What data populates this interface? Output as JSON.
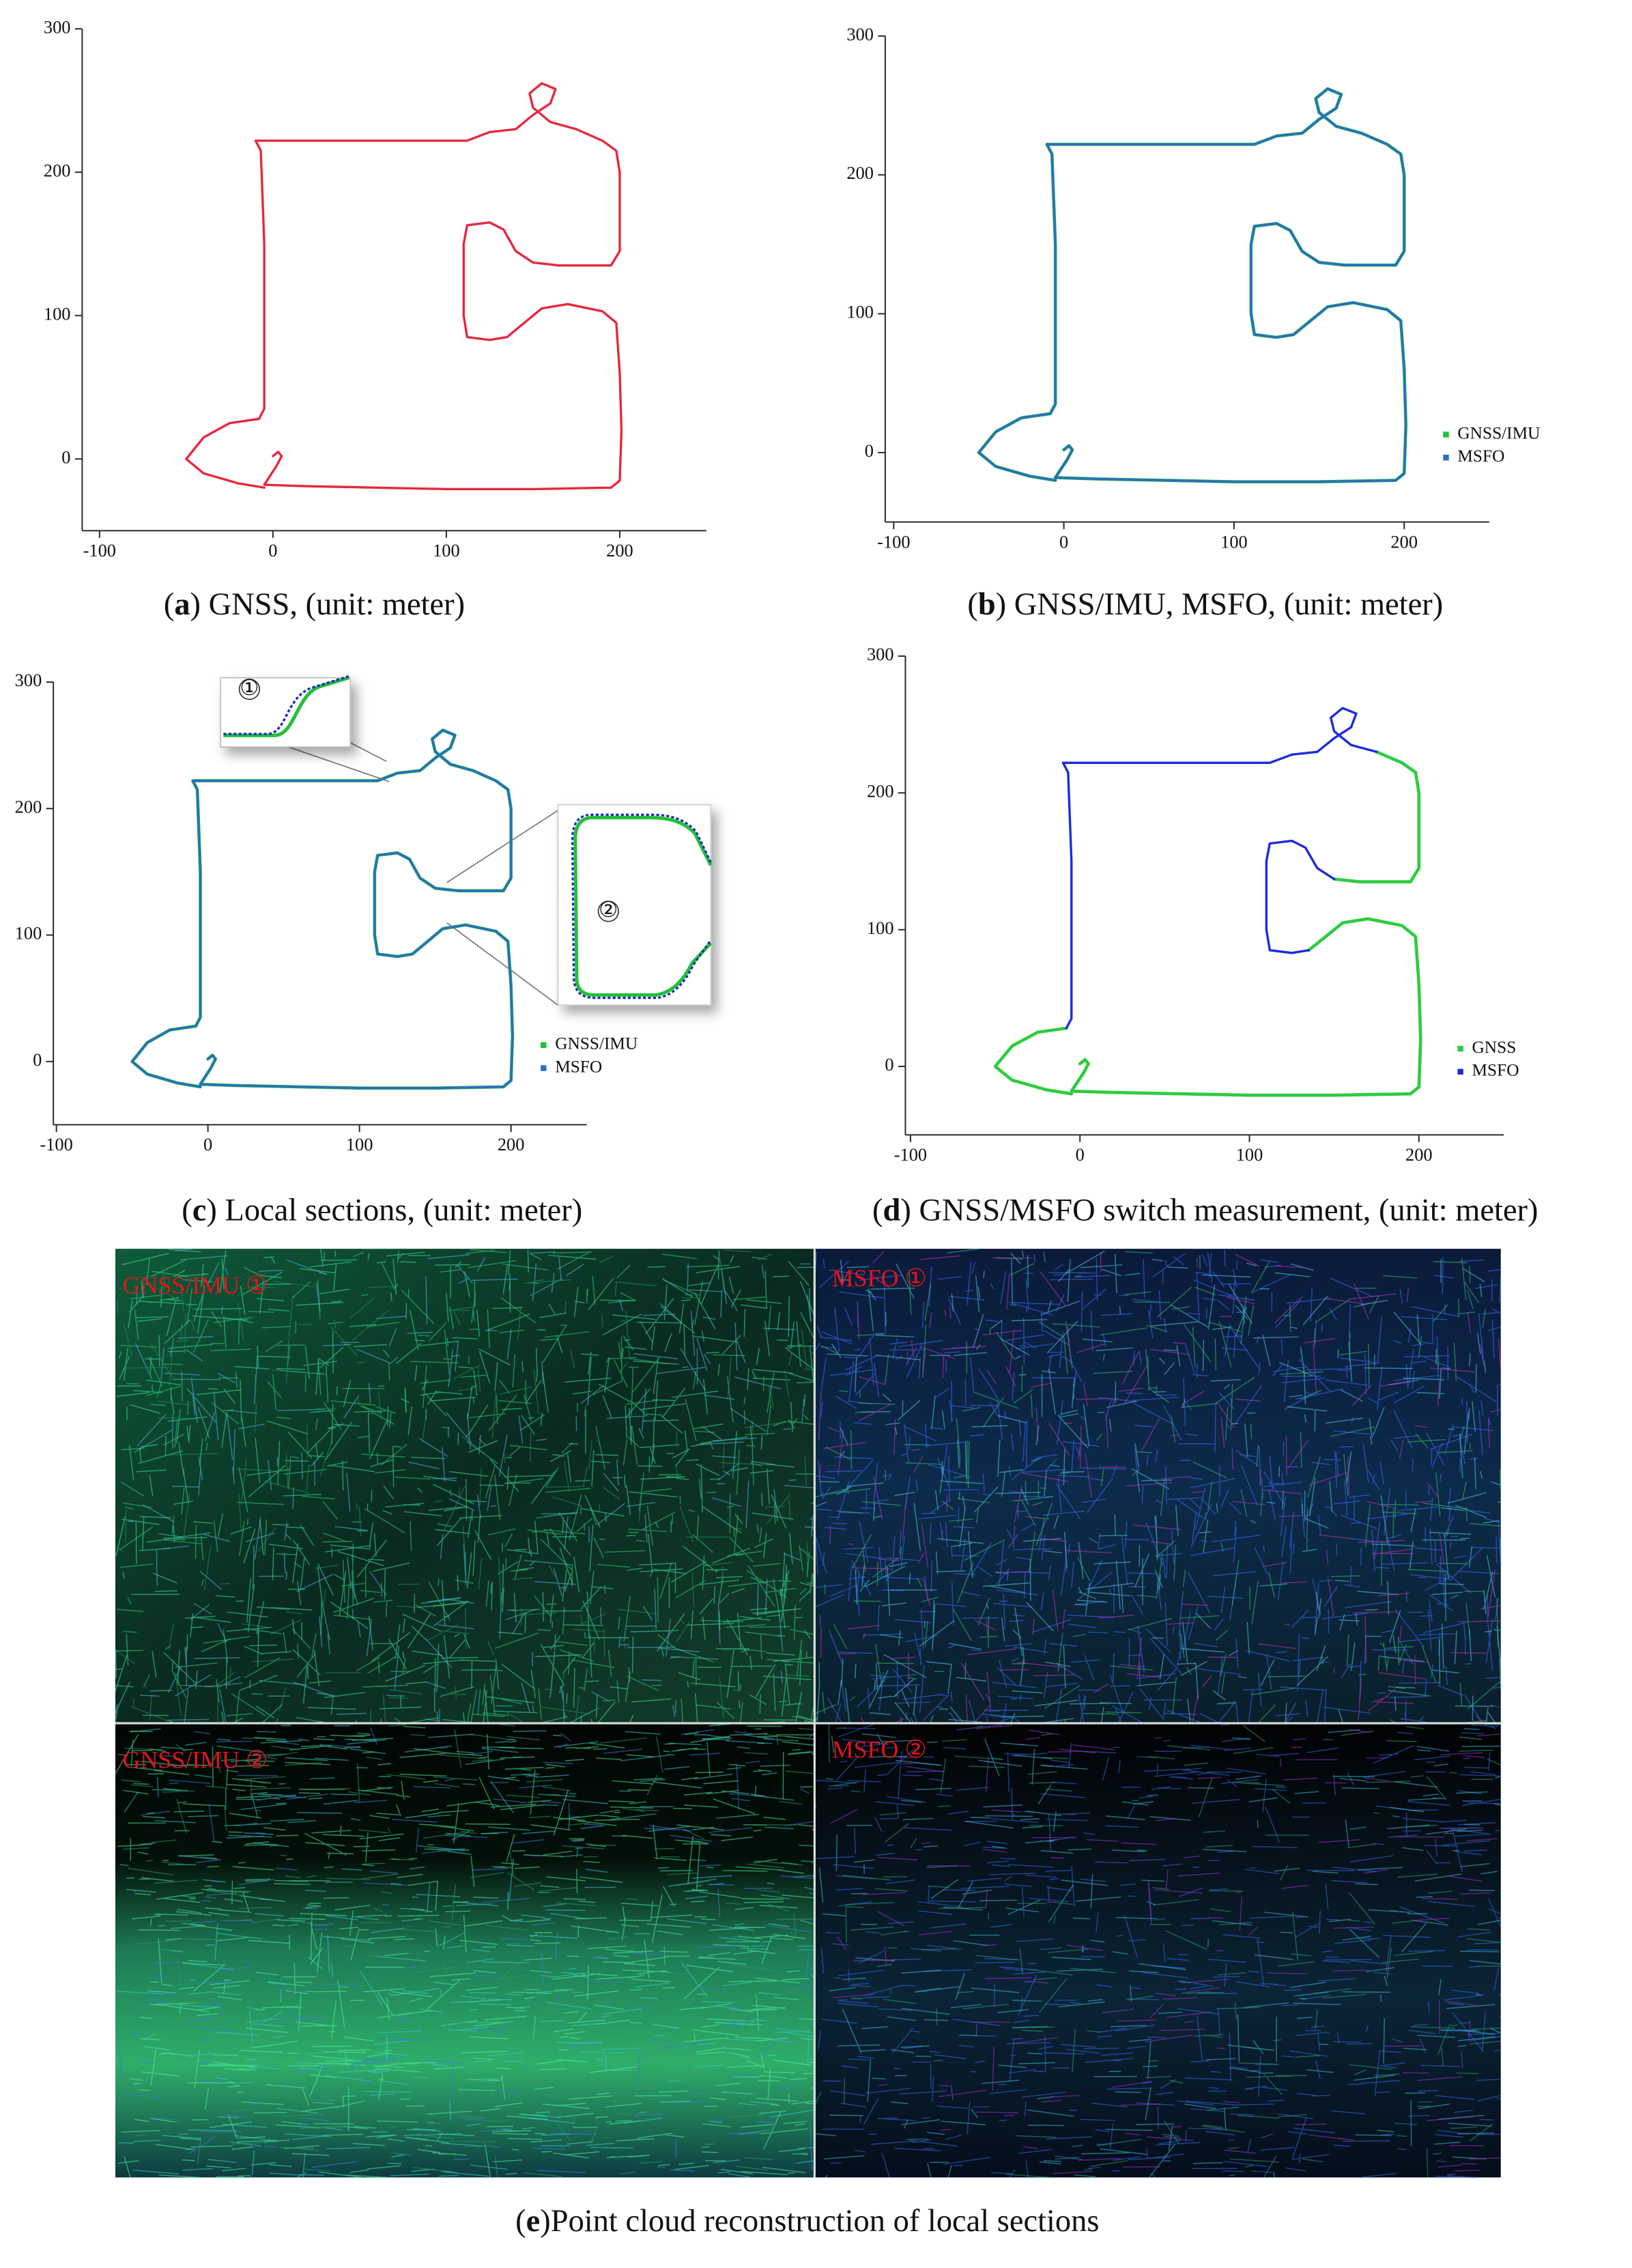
{
  "chart_data": [
    {
      "type": "line",
      "caption": "(a) GNSS, (unit: meter)",
      "color": "#e6283c",
      "x": [
        0,
        3,
        5,
        2,
        -5,
        20,
        60,
        100,
        150,
        195,
        200,
        201,
        200,
        198,
        190,
        170,
        155,
        145,
        135,
        125,
        112,
        110,
        110,
        112,
        125,
        133,
        140,
        150,
        165,
        195,
        200,
        200,
        198,
        190,
        175,
        160,
        150,
        148,
        155,
        163,
        160,
        150,
        140,
        125,
        112,
        80,
        40,
        0,
        -10,
        -7,
        -5,
        -5,
        -5,
        -8,
        -25,
        -40,
        -50,
        -40,
        -20,
        -5
      ],
      "values": [
        2,
        5,
        2,
        -5,
        -18,
        -19,
        -20,
        -21,
        -21,
        -20,
        -15,
        20,
        60,
        95,
        103,
        108,
        105,
        95,
        85,
        83,
        85,
        100,
        150,
        163,
        165,
        160,
        145,
        137,
        135,
        135,
        145,
        200,
        215,
        222,
        230,
        235,
        245,
        255,
        262,
        258,
        248,
        240,
        230,
        228,
        222,
        222,
        222,
        222,
        222,
        215,
        150,
        80,
        35,
        28,
        25,
        15,
        0,
        -10,
        -17,
        -20
      ],
      "xlim": [
        -110,
        250
      ],
      "ylim": [
        -50,
        300
      ],
      "xticks": [
        -100,
        0,
        100,
        200
      ],
      "yticks": [
        0,
        100,
        200,
        300
      ]
    },
    {
      "type": "line",
      "caption": "(b) GNSS/IMU, MSFO, (unit: meter)",
      "legend": "lower right",
      "x": [
        0,
        3,
        5,
        2,
        -5,
        20,
        60,
        100,
        150,
        195,
        200,
        201,
        200,
        198,
        190,
        170,
        155,
        145,
        135,
        125,
        112,
        110,
        110,
        112,
        125,
        133,
        140,
        150,
        165,
        195,
        200,
        200,
        198,
        190,
        175,
        160,
        150,
        148,
        155,
        163,
        160,
        150,
        140,
        125,
        112,
        80,
        40,
        0,
        -10,
        -7,
        -5,
        -5,
        -5,
        -8,
        -25,
        -40,
        -50,
        -40,
        -20,
        -5
      ],
      "series": [
        {
          "name": "GNSS/IMU",
          "color": "#22c03a",
          "values": [
            2,
            5,
            2,
            -5,
            -18,
            -19,
            -20,
            -21,
            -21,
            -20,
            -15,
            20,
            60,
            95,
            103,
            108,
            105,
            95,
            85,
            83,
            85,
            100,
            150,
            163,
            165,
            160,
            145,
            137,
            135,
            135,
            145,
            200,
            215,
            222,
            230,
            235,
            245,
            255,
            262,
            258,
            248,
            240,
            230,
            228,
            222,
            222,
            222,
            222,
            222,
            215,
            150,
            80,
            35,
            28,
            25,
            15,
            0,
            -10,
            -17,
            -20
          ]
        },
        {
          "name": "MSFO",
          "color": "#2a6fbf",
          "values": [
            2,
            5,
            2,
            -5,
            -18,
            -19,
            -20,
            -21,
            -21,
            -20,
            -15,
            20,
            60,
            95,
            103,
            108,
            105,
            95,
            85,
            83,
            85,
            100,
            150,
            163,
            165,
            160,
            145,
            137,
            135,
            135,
            145,
            200,
            215,
            222,
            230,
            235,
            245,
            255,
            262,
            258,
            248,
            240,
            230,
            228,
            222,
            222,
            222,
            222,
            222,
            215,
            150,
            80,
            35,
            28,
            25,
            15,
            0,
            -10,
            -17,
            -20
          ]
        }
      ],
      "xlim": [
        -105,
        250
      ],
      "ylim": [
        -50,
        300
      ],
      "xticks": [
        -100,
        0,
        100,
        200
      ],
      "yticks": [
        0,
        100,
        200,
        300
      ]
    },
    {
      "type": "line",
      "caption": "(c) Local sections, (unit: meter)",
      "legend": "lower right",
      "annotations": [
        "①",
        "②"
      ],
      "x": [
        0,
        3,
        5,
        2,
        -5,
        20,
        60,
        100,
        150,
        195,
        200,
        201,
        200,
        198,
        190,
        170,
        155,
        145,
        135,
        125,
        112,
        110,
        110,
        112,
        125,
        133,
        140,
        150,
        165,
        195,
        200,
        200,
        198,
        190,
        175,
        160,
        150,
        148,
        155,
        163,
        160,
        150,
        140,
        125,
        112,
        80,
        40,
        0,
        -10,
        -7,
        -5,
        -5,
        -5,
        -8,
        -25,
        -40,
        -50,
        -40,
        -20,
        -5
      ],
      "series": [
        {
          "name": "GNSS/IMU",
          "color": "#22c03a",
          "values": [
            2,
            5,
            2,
            -5,
            -18,
            -19,
            -20,
            -21,
            -21,
            -20,
            -15,
            20,
            60,
            95,
            103,
            108,
            105,
            95,
            85,
            83,
            85,
            100,
            150,
            163,
            165,
            160,
            145,
            137,
            135,
            135,
            145,
            200,
            215,
            222,
            230,
            235,
            245,
            255,
            262,
            258,
            248,
            240,
            230,
            228,
            222,
            222,
            222,
            222,
            222,
            215,
            150,
            80,
            35,
            28,
            25,
            15,
            0,
            -10,
            -17,
            -20
          ]
        },
        {
          "name": "MSFO",
          "color": "#2a6fbf",
          "values": [
            2,
            5,
            2,
            -5,
            -18,
            -19,
            -20,
            -21,
            -21,
            -20,
            -15,
            20,
            60,
            95,
            103,
            108,
            105,
            95,
            85,
            83,
            85,
            100,
            150,
            163,
            165,
            160,
            145,
            137,
            135,
            135,
            145,
            200,
            215,
            222,
            230,
            235,
            245,
            255,
            262,
            258,
            248,
            240,
            230,
            228,
            222,
            222,
            222,
            222,
            222,
            215,
            150,
            80,
            35,
            28,
            25,
            15,
            0,
            -10,
            -17,
            -20
          ]
        }
      ],
      "xlim": [
        -102,
        250
      ],
      "ylim": [
        -50,
        300
      ],
      "xticks": [
        -100,
        0,
        100,
        200
      ],
      "yticks": [
        0,
        100,
        200,
        300
      ]
    },
    {
      "type": "line",
      "caption": "(d) GNSS/MSFO switch measurement, (unit: meter)",
      "legend": "lower right",
      "x": [
        0,
        3,
        5,
        2,
        -5,
        20,
        60,
        100,
        150,
        195,
        200,
        201,
        200,
        198,
        190,
        170,
        155,
        145,
        135,
        125,
        112,
        110,
        110,
        112,
        125,
        133,
        140,
        150,
        165,
        195,
        200,
        200,
        198,
        190,
        175,
        160,
        150,
        148,
        155,
        163,
        160,
        150,
        140,
        125,
        112,
        80,
        40,
        0,
        -10,
        -7,
        -5,
        -5,
        -5,
        -8,
        -25,
        -40,
        -50,
        -40,
        -20,
        -5
      ],
      "series": [
        {
          "name": "GNSS",
          "color": "#2ecc40",
          "values": [
            2,
            5,
            2,
            -5,
            -18,
            -19,
            -20,
            -21,
            -21,
            -20,
            -15,
            20,
            60,
            95,
            103,
            108,
            105,
            95,
            85,
            null,
            null,
            null,
            null,
            null,
            null,
            null,
            null,
            137,
            135,
            135,
            145,
            200,
            215,
            222,
            230,
            null,
            null,
            null,
            null,
            null,
            null,
            null,
            null,
            null,
            null,
            null,
            null,
            null,
            null,
            null,
            null,
            null,
            null,
            28,
            25,
            15,
            0,
            -10,
            -17,
            -20
          ]
        },
        {
          "name": "MSFO",
          "color": "#1a2be0",
          "values": [
            null,
            null,
            null,
            null,
            null,
            null,
            null,
            null,
            null,
            null,
            null,
            null,
            null,
            null,
            null,
            null,
            null,
            null,
            85,
            83,
            85,
            100,
            150,
            163,
            165,
            160,
            145,
            137,
            null,
            null,
            null,
            null,
            null,
            null,
            230,
            235,
            245,
            255,
            262,
            258,
            248,
            240,
            230,
            228,
            222,
            222,
            222,
            222,
            222,
            215,
            150,
            80,
            35,
            28,
            null,
            null,
            null,
            null,
            null,
            null
          ]
        }
      ],
      "xlim": [
        -103,
        250
      ],
      "ylim": [
        -50,
        300
      ],
      "xticks": [
        -100,
        0,
        100,
        200
      ],
      "yticks": [
        0,
        100,
        200,
        300
      ]
    }
  ],
  "panel_e": {
    "labels": [
      "GNSS/IMU ①",
      "MSFO ①",
      "GNSS/IMU ②",
      "MSFO ②"
    ],
    "caption": "(e)Point cloud reconstruction of local sections"
  }
}
